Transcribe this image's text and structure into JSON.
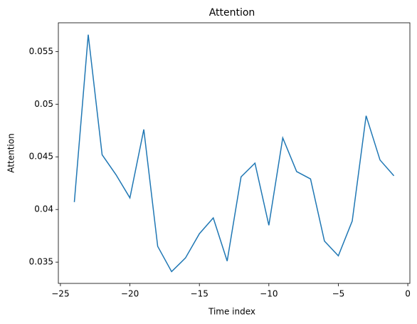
{
  "chart_data": {
    "type": "line",
    "title": "Attention",
    "xlabel": "Time index",
    "ylabel": "Attention",
    "x": [
      -24,
      -23,
      -22,
      -21,
      -20,
      -19,
      -18,
      -17,
      -16,
      -15,
      -14,
      -13,
      -12,
      -11,
      -10,
      -9,
      -8,
      -7,
      -6,
      -5,
      -4,
      -3,
      -2,
      -1
    ],
    "series": [
      {
        "name": "Attention",
        "color": "#1f77b4",
        "values": [
          0.0407,
          0.0566,
          0.0452,
          0.0433,
          0.0411,
          0.0476,
          0.0365,
          0.0341,
          0.0354,
          0.0377,
          0.0392,
          0.0351,
          0.0431,
          0.0444,
          0.0385,
          0.0468,
          0.0436,
          0.0429,
          0.037,
          0.0356,
          0.0389,
          0.0489,
          0.0447,
          0.0432
        ]
      }
    ],
    "xlim": [
      -25.15,
      0.15
    ],
    "xticks": [
      {
        "value": -25,
        "label": "−25"
      },
      {
        "value": -20,
        "label": "−20"
      },
      {
        "value": -15,
        "label": "−15"
      },
      {
        "value": -10,
        "label": "−10"
      },
      {
        "value": -5,
        "label": "−5"
      },
      0
    ],
    "ylim": [
      0.03298,
      0.05773
    ],
    "yticks": [
      0.035,
      0.04,
      0.045,
      0.05,
      0.055
    ]
  }
}
